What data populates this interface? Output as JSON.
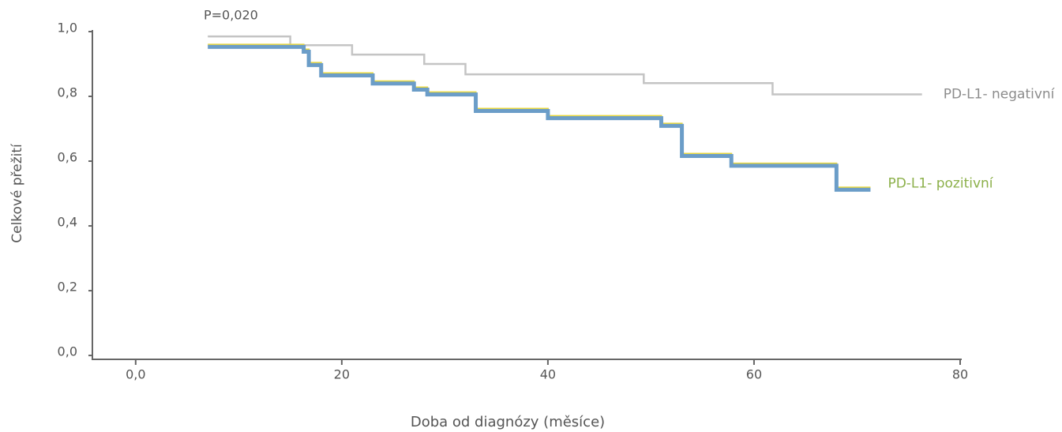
{
  "chart_data": {
    "type": "step",
    "annotation": "P=0,020",
    "x_label": "Doba od diagnózy (měsíce)",
    "y_label": "Celkové přežití",
    "xlim": [
      -4.2,
      80
    ],
    "ylim": [
      -0.012,
      1.0
    ],
    "xticks": [
      {
        "value": 0,
        "label": "0,0"
      },
      20,
      40,
      60,
      80
    ],
    "yticks": [
      {
        "value": 0,
        "label": "0,0"
      },
      {
        "value": 0.2,
        "label": "0,2"
      },
      {
        "value": 0.4,
        "label": "0,4"
      },
      {
        "value": 0.6,
        "label": "0,6"
      },
      {
        "value": 0.8,
        "label": "0,8"
      },
      {
        "value": 1.0,
        "label": "1,0"
      }
    ],
    "series": [
      {
        "name": "PD-L1- negativní",
        "color": "#c4c4c4",
        "label_color": "#8c8c8c",
        "x": [
          7,
          15,
          21,
          28,
          32,
          49.3,
          61.8,
          76.3
        ],
        "values": [
          0.985,
          0.958,
          0.929,
          0.9,
          0.868,
          0.841,
          0.806,
          0.806
        ]
      },
      {
        "name": "PD-L1- pozitivní",
        "color": "#6b9dc8",
        "label_color": "#8cb04a",
        "x": [
          7,
          16.3,
          16.8,
          18,
          23,
          27,
          28.3,
          33,
          40,
          51,
          53,
          57.8,
          68,
          71.3
        ],
        "values": [
          0.954,
          0.939,
          0.898,
          0.866,
          0.841,
          0.822,
          0.807,
          0.756,
          0.734,
          0.71,
          0.617,
          0.587,
          0.513,
          0.513
        ]
      }
    ]
  }
}
